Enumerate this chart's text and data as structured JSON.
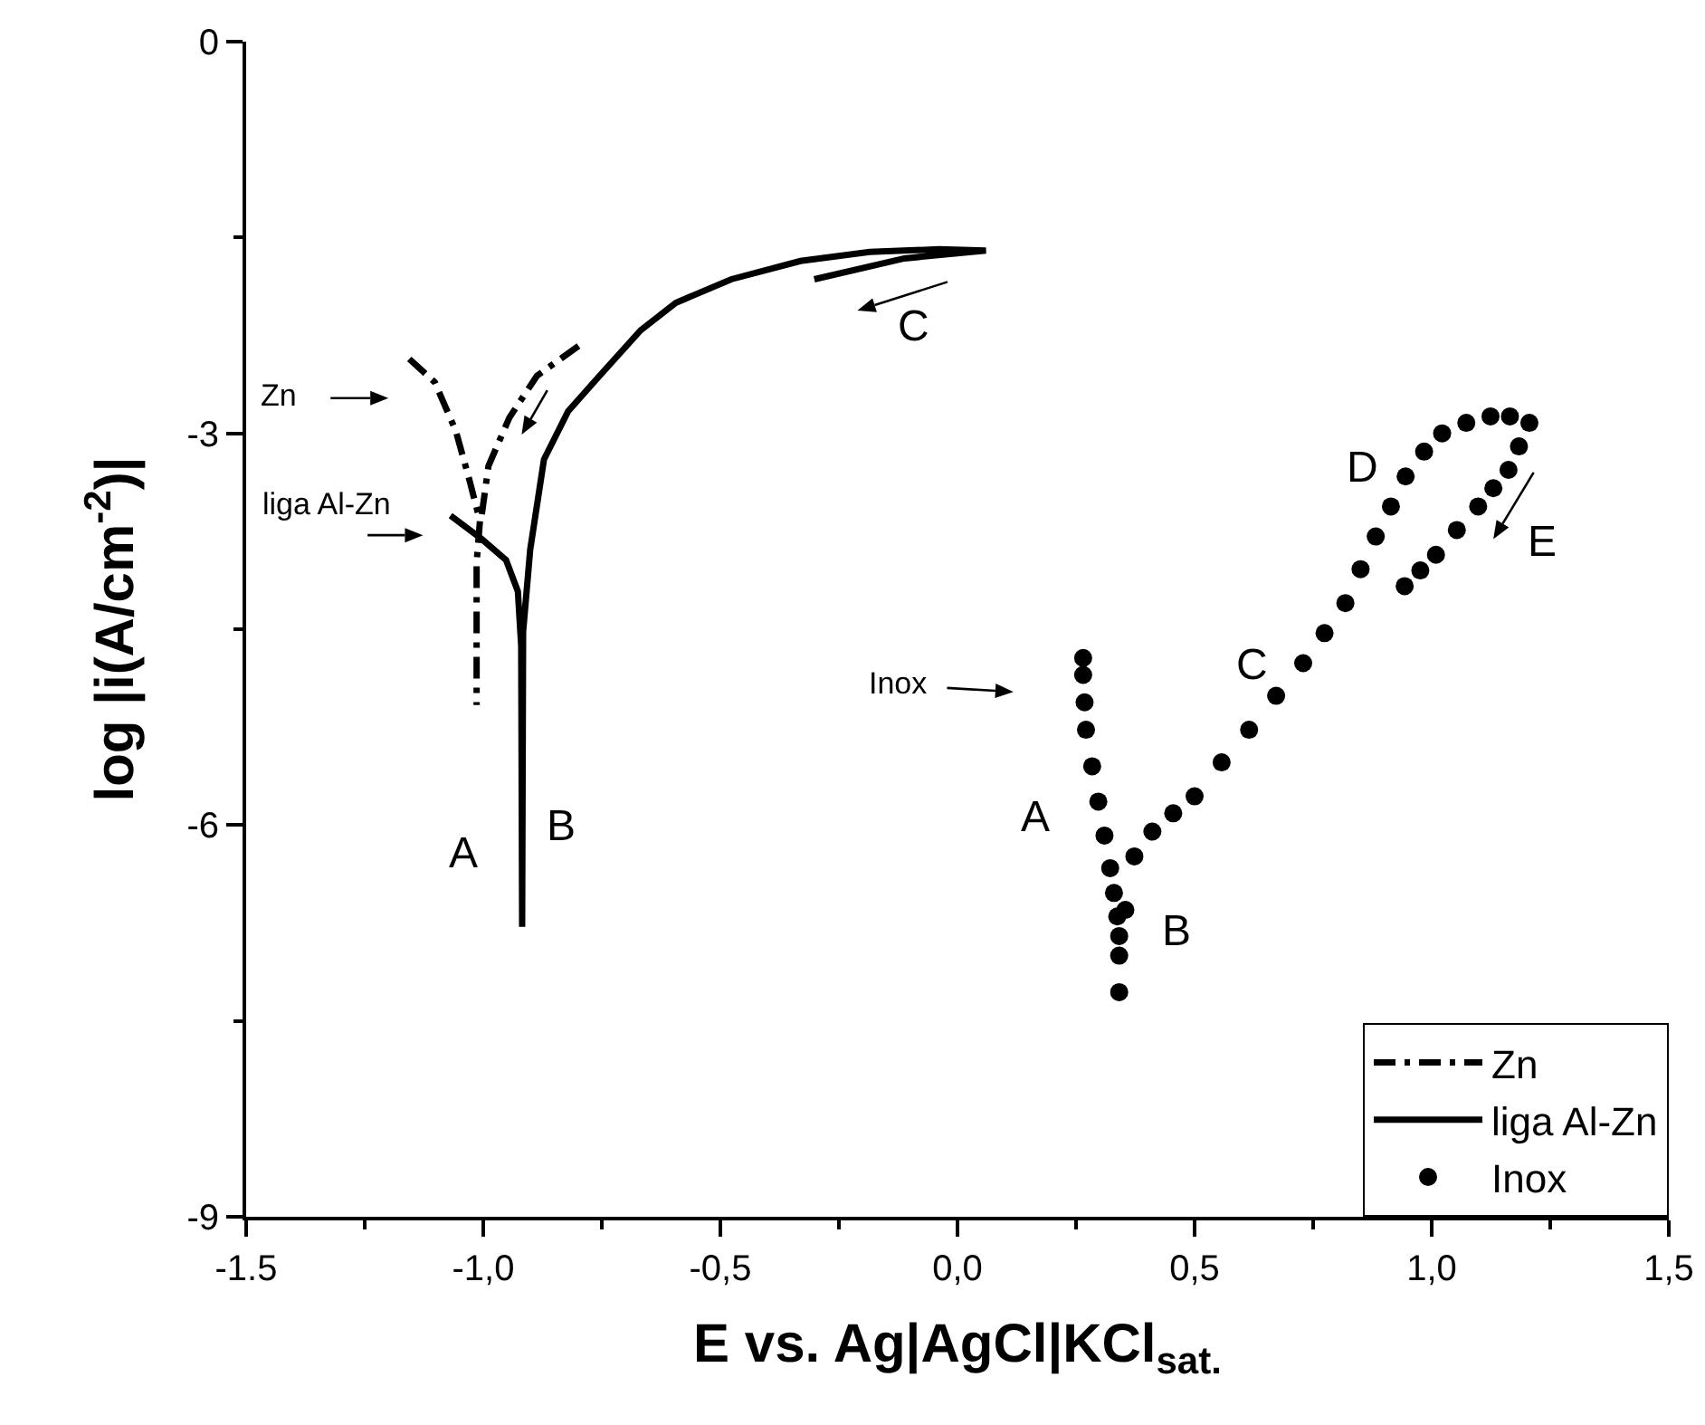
{
  "chart_data": {
    "type": "line",
    "xlabel": "E vs. Ag|AgCl|KCl$_{sat.}$",
    "ylabel": "log |i(A/cm$^{-2}$)|",
    "xlim": [
      -1.5,
      1.5
    ],
    "xticks": [
      -1.5,
      {
        "value": -1.25,
        "label": null
      },
      "-1,0",
      {
        "value": -0.75,
        "label": null
      },
      {
        "value": -0.5,
        "label": "-0,5"
      },
      {
        "value": -0.25,
        "label": null
      },
      {
        "value": 0,
        "label": "0,0"
      },
      {
        "value": 0.25,
        "label": null
      },
      {
        "value": 0.5,
        "label": "0,5"
      },
      {
        "value": 0.75,
        "label": null
      },
      {
        "value": 1,
        "label": "1,0"
      },
      {
        "value": 1.25,
        "label": null
      },
      {
        "value": 1.5,
        "label": "1,5"
      }
    ],
    "ylim": [
      -9,
      0
    ],
    "yticks": [
      -9,
      {
        "value": -7.5,
        "label": null
      },
      -6,
      {
        "value": -4.5,
        "label": null
      },
      -3,
      {
        "value": -1.5,
        "label": null
      },
      0
    ],
    "grid": false,
    "legend": "bottom right",
    "series": [
      {
        "name": "Zn",
        "line_style": "dashed",
        "color": "#000000",
        "x": [
          -1.156,
          -1.102,
          -1.058,
          -1.029,
          -1.007,
          -1.014,
          -1.014,
          -1.014,
          null,
          -1.003,
          -0.989,
          -0.945,
          -0.887,
          -0.799
        ],
        "values": [
          -2.43,
          -2.61,
          -2.98,
          -3.36,
          -3.67,
          -3.99,
          -4.52,
          -5.08,
          null,
          -3.62,
          -3.25,
          -2.88,
          -2.56,
          -2.33
        ]
      },
      {
        "name": "liga Al-Zn",
        "line_style": "solid",
        "color": "#000000",
        "x": [
          -1.069,
          -1.003,
          -0.952,
          -0.927,
          -0.92,
          -0.918,
          -0.916,
          -0.901,
          -0.872,
          -0.821,
          -0.755,
          -0.668,
          -0.594,
          -0.477,
          -0.331,
          -0.185,
          -0.039,
          0.06,
          -0.112,
          -0.302
        ],
        "values": [
          -3.63,
          -3.81,
          -3.97,
          -4.21,
          -4.63,
          -6.78,
          -4.52,
          -3.89,
          -3.2,
          -2.83,
          -2.56,
          -2.21,
          -2.0,
          -1.82,
          -1.68,
          -1.61,
          -1.59,
          -1.6,
          -1.66,
          -1.82
        ]
      },
      {
        "name": "Inox",
        "type": "scatter",
        "marker": "circle",
        "color": "#000000",
        "x": [
          0.265,
          0.265,
          0.268,
          0.271,
          0.284,
          0.297,
          0.31,
          0.322,
          0.33,
          0.337,
          0.341,
          0.341,
          0.341,
          0.354,
          0.373,
          0.411,
          0.455,
          0.5,
          0.557,
          0.615,
          0.672,
          0.729,
          0.774,
          0.818,
          0.85,
          0.882,
          0.914,
          0.945,
          0.984,
          1.022,
          1.073,
          1.124,
          1.165,
          1.206,
          1.184,
          1.162,
          1.13,
          1.098,
          1.053,
          1.009,
          0.976,
          0.943
        ],
        "values": [
          -4.72,
          -4.85,
          -5.06,
          -5.27,
          -5.55,
          -5.82,
          -6.08,
          -6.33,
          -6.52,
          -6.7,
          -6.85,
          -7.0,
          -7.28,
          -6.65,
          -6.24,
          -6.05,
          -5.91,
          -5.78,
          -5.52,
          -5.27,
          -5.01,
          -4.76,
          -4.53,
          -4.3,
          -4.04,
          -3.79,
          -3.56,
          -3.33,
          -3.14,
          -3.0,
          -2.92,
          -2.87,
          -2.87,
          -2.92,
          -3.1,
          -3.28,
          -3.42,
          -3.56,
          -3.74,
          -3.93,
          -4.05,
          -4.17
        ]
      }
    ],
    "annotations": [
      "Zn",
      "liga Al-Zn",
      "Inox",
      "A",
      "B",
      "C",
      "A",
      "B",
      "C",
      "D",
      "E"
    ]
  }
}
